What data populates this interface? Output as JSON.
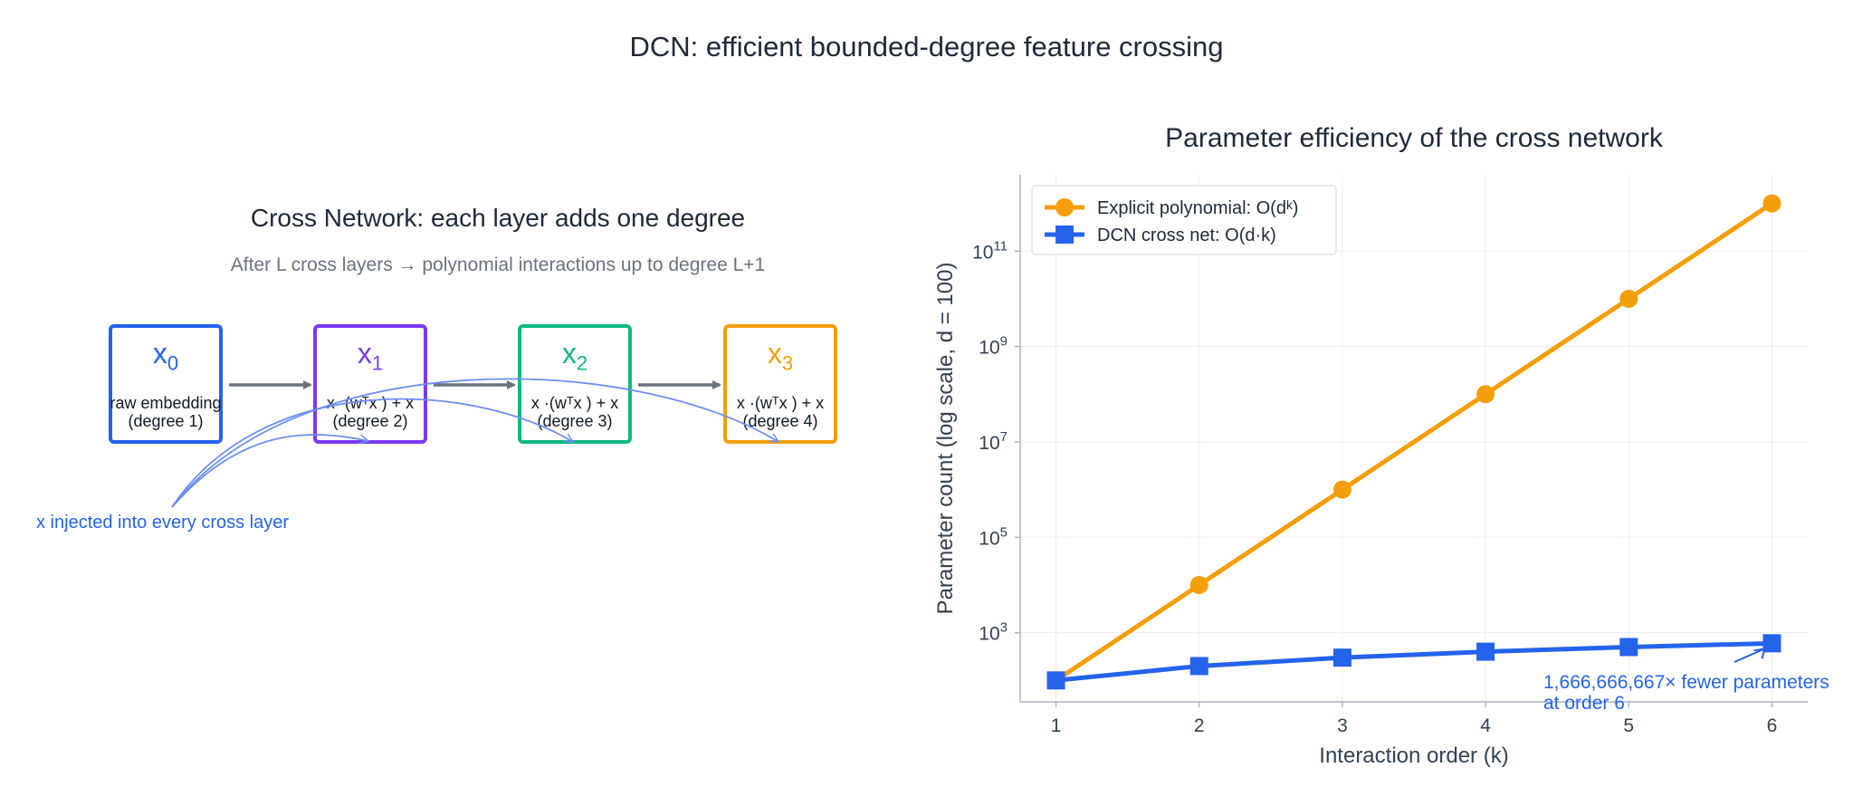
{
  "title": "DCN: efficient bounded-degree feature crossing",
  "diagram": {
    "title": "Cross Network: each layer adds one degree",
    "subtitle": "After L cross layers → polynomial interactions up to degree L+1",
    "nodes": [
      {
        "base": "x",
        "sub": "0",
        "desc1": "raw embedding",
        "desc2": "(degree 1)",
        "color": "#2563eb"
      },
      {
        "base": "x",
        "sub": "1",
        "desc1": "x ·(wᵀx ) + x",
        "desc2": "(degree 2)",
        "color": "#7c3aed"
      },
      {
        "base": "x",
        "sub": "2",
        "desc1": "x ·(wᵀx ) + x",
        "desc2": "(degree 3)",
        "color": "#10b981"
      },
      {
        "base": "x",
        "sub": "3",
        "desc1": "x ·(wᵀx ) + x",
        "desc2": "(degree 4)",
        "color": "#f59e0b"
      }
    ],
    "injection_note": "x  injected into every cross layer"
  },
  "chart_data": {
    "type": "line",
    "title": "Parameter efficiency of the cross network",
    "xlabel": "Interaction order (k)",
    "ylabel": "Parameter count (log scale,  d = 100)",
    "y_scale": "log",
    "x": [
      1,
      2,
      3,
      4,
      5,
      6
    ],
    "x_ticks": [
      "1",
      "2",
      "3",
      "4",
      "5",
      "6"
    ],
    "y_ticks": [
      {
        "value": 1000,
        "base": "10",
        "exp": "3"
      },
      {
        "value": 100000,
        "base": "10",
        "exp": "5"
      },
      {
        "value": 10000000,
        "base": "10",
        "exp": "7"
      },
      {
        "value": 1000000000,
        "base": "10",
        "exp": "9"
      },
      {
        "value": 100000000000,
        "base": "10",
        "exp": "11"
      }
    ],
    "ylim_log10": [
      1.55,
      12.6
    ],
    "xlim": [
      0.75,
      6.25
    ],
    "grid": true,
    "legend_position": "top-left",
    "series": [
      {
        "name": "Explicit polynomial: O(dᵏ)",
        "marker": "circle",
        "color": "#f59e0b",
        "values": [
          100,
          10000,
          1000000,
          100000000,
          10000000000,
          1000000000000
        ]
      },
      {
        "name": "DCN cross net: O(d·k)",
        "marker": "square",
        "color": "#2563eb",
        "values": [
          100,
          200,
          300,
          400,
          500,
          600
        ]
      }
    ],
    "annotation": {
      "line1": "1,666,666,667× fewer parameters",
      "line2": "at order 6",
      "x": 6,
      "y": 600
    }
  }
}
